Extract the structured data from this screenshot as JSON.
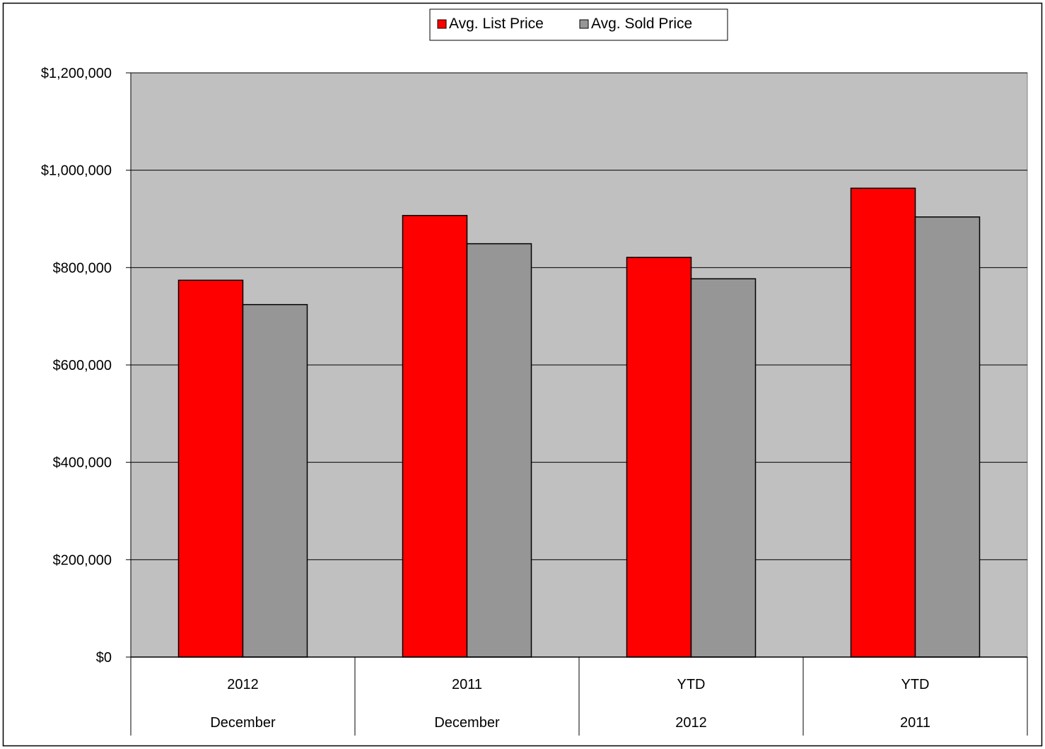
{
  "chart_data": {
    "type": "bar",
    "categories": [
      {
        "top": "2012",
        "bottom": "December"
      },
      {
        "top": "2011",
        "bottom": "December"
      },
      {
        "top": "YTD",
        "bottom": "2012"
      },
      {
        "top": "YTD",
        "bottom": "2011"
      }
    ],
    "series": [
      {
        "name": "Avg. List Price",
        "color": "#ff0000",
        "values": [
          774000,
          907000,
          821000,
          963000
        ]
      },
      {
        "name": "Avg. Sold Price",
        "color": "#969696",
        "values": [
          724000,
          849000,
          777000,
          904000
        ]
      }
    ],
    "ylim": [
      0,
      1200000
    ],
    "yticks": [
      0,
      200000,
      400000,
      600000,
      800000,
      1000000,
      1200000
    ],
    "ytick_labels": [
      "$0",
      "$200,000",
      "$400,000",
      "$600,000",
      "$800,000",
      "$1,000,000",
      "$1,200,000"
    ],
    "grid": true,
    "legend_position": "top-center",
    "plot_background": "#c0c0c0"
  }
}
